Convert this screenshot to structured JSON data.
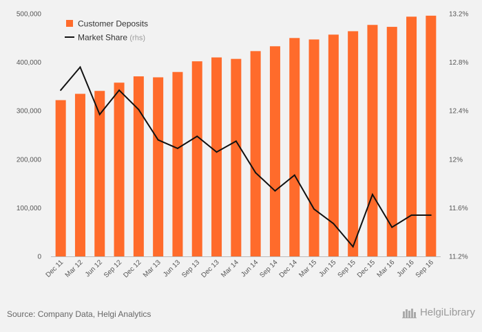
{
  "chart_data": {
    "type": "bar",
    "categories": [
      "Dec 11",
      "Mar 12",
      "Jun 12",
      "Sep 12",
      "Dec 12",
      "Mar 13",
      "Jun 13",
      "Sep 13",
      "Dec 13",
      "Mar 14",
      "Jun 14",
      "Sep 14",
      "Dec 14",
      "Mar 15",
      "Jun 15",
      "Sep 15",
      "Dec 15",
      "Mar 16",
      "Jun 16",
      "Sep 16"
    ],
    "series": [
      {
        "name": "Customer Deposits",
        "type": "bar",
        "axis": "left",
        "color": "#ff6b2b",
        "values": [
          322000,
          335000,
          341000,
          358000,
          371000,
          369000,
          380000,
          402000,
          410000,
          407000,
          423000,
          433000,
          450000,
          447000,
          457000,
          464000,
          477000,
          473000,
          494000,
          496000
        ]
      },
      {
        "name": "Market Share",
        "name_suffix": "(rhs)",
        "type": "line",
        "axis": "right",
        "color": "#111111",
        "values": [
          12.57,
          12.76,
          12.37,
          12.57,
          12.41,
          12.16,
          12.09,
          12.19,
          12.06,
          12.15,
          11.89,
          11.74,
          11.87,
          11.59,
          11.47,
          11.28,
          11.71,
          11.44,
          11.54,
          11.54
        ]
      }
    ],
    "yaxis_left": {
      "min": 0,
      "max": 500000,
      "ticks": [
        0,
        100000,
        200000,
        300000,
        400000,
        500000
      ],
      "tick_labels": [
        "0",
        "100,000",
        "200,000",
        "300,000",
        "400,000",
        "500,000"
      ]
    },
    "yaxis_right": {
      "min": 11.2,
      "max": 13.2,
      "ticks": [
        11.2,
        11.6,
        12.0,
        12.4,
        12.8,
        13.2
      ],
      "tick_labels": [
        "11.2%",
        "11.6%",
        "12%",
        "12.4%",
        "12.8%",
        "13.2%"
      ]
    },
    "legend_position": "top-left",
    "grid": false
  },
  "footer": {
    "source": "Source: Company Data, Helgi Analytics",
    "brand_prefix": "Helgi",
    "brand_suffix": "Library"
  }
}
